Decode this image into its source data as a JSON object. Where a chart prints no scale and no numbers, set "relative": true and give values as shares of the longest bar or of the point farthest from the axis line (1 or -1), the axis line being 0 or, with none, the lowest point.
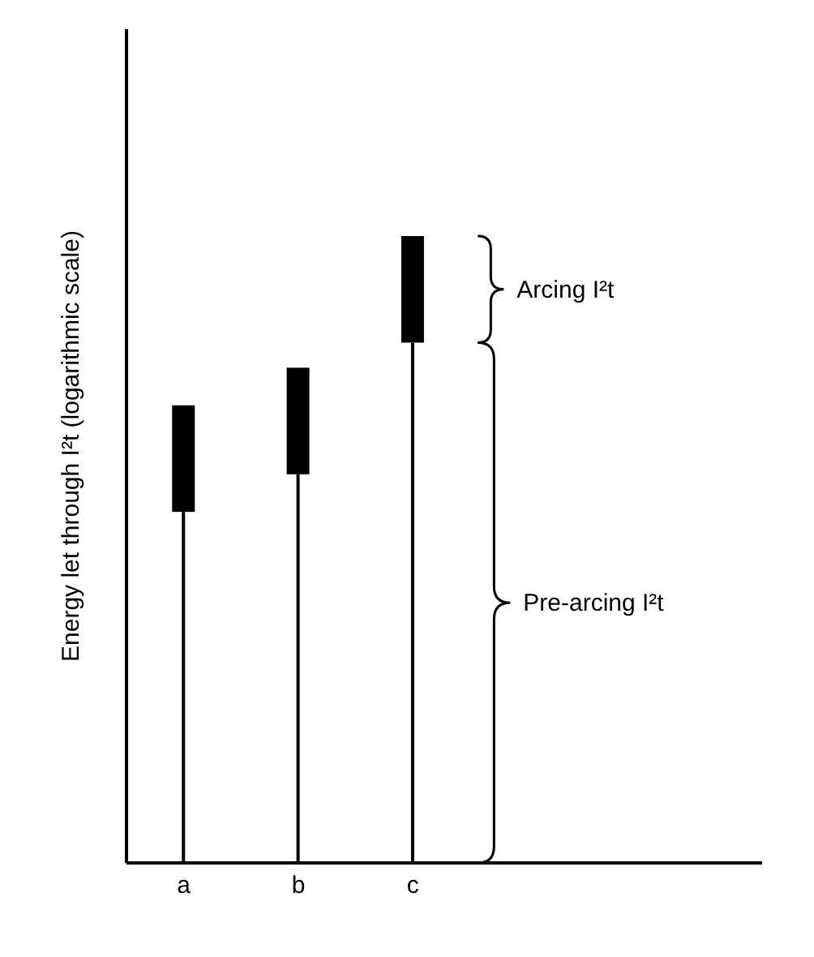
{
  "chart_data": {
    "type": "bar",
    "stacked": true,
    "relative": true,
    "ylabel": "Energy let through I²t (logarithmic scale)",
    "categories": [
      "a",
      "b",
      "c"
    ],
    "series": [
      {
        "color": "#000000",
        "values": [
          0.56,
          0.62,
          0.83
        ]
      },
      {
        "color": "#000000",
        "values": [
          0.17,
          0.17,
          0.17
        ]
      }
    ],
    "annotations": [
      "Arcing I²t",
      "Pre-arcing I²t"
    ],
    "grid": false,
    "legend": false
  }
}
